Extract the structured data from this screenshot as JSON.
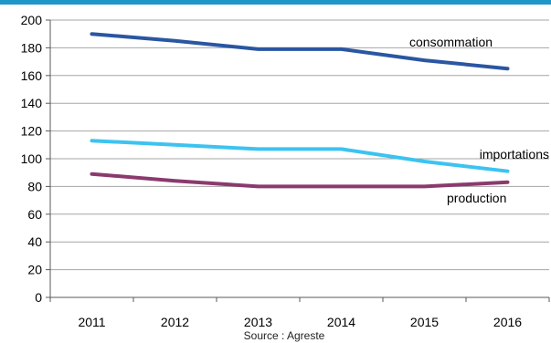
{
  "chart_data": {
    "type": "line",
    "categories": [
      "2011",
      "2012",
      "2013",
      "2014",
      "2015",
      "2016"
    ],
    "series": [
      {
        "name": "consommation",
        "values": [
          190,
          185,
          179,
          179,
          171,
          165
        ],
        "color": "#2a56a2"
      },
      {
        "name": "importations",
        "values": [
          113,
          110,
          107,
          107,
          98,
          91
        ],
        "color": "#3cc3f0"
      },
      {
        "name": "production",
        "values": [
          89,
          84,
          80,
          80,
          80,
          83
        ],
        "color": "#8b3a6d"
      }
    ],
    "ylim": [
      0,
      200
    ],
    "yticks": [
      "0",
      "20",
      "40",
      "60",
      "80",
      "100",
      "120",
      "140",
      "160",
      "180",
      "200"
    ],
    "grid": "horizontal",
    "source": "Source : Agreste"
  },
  "colors": {
    "accent_bar": "#1f96c8",
    "grid": "#a6a6a6",
    "axis": "#595959"
  }
}
